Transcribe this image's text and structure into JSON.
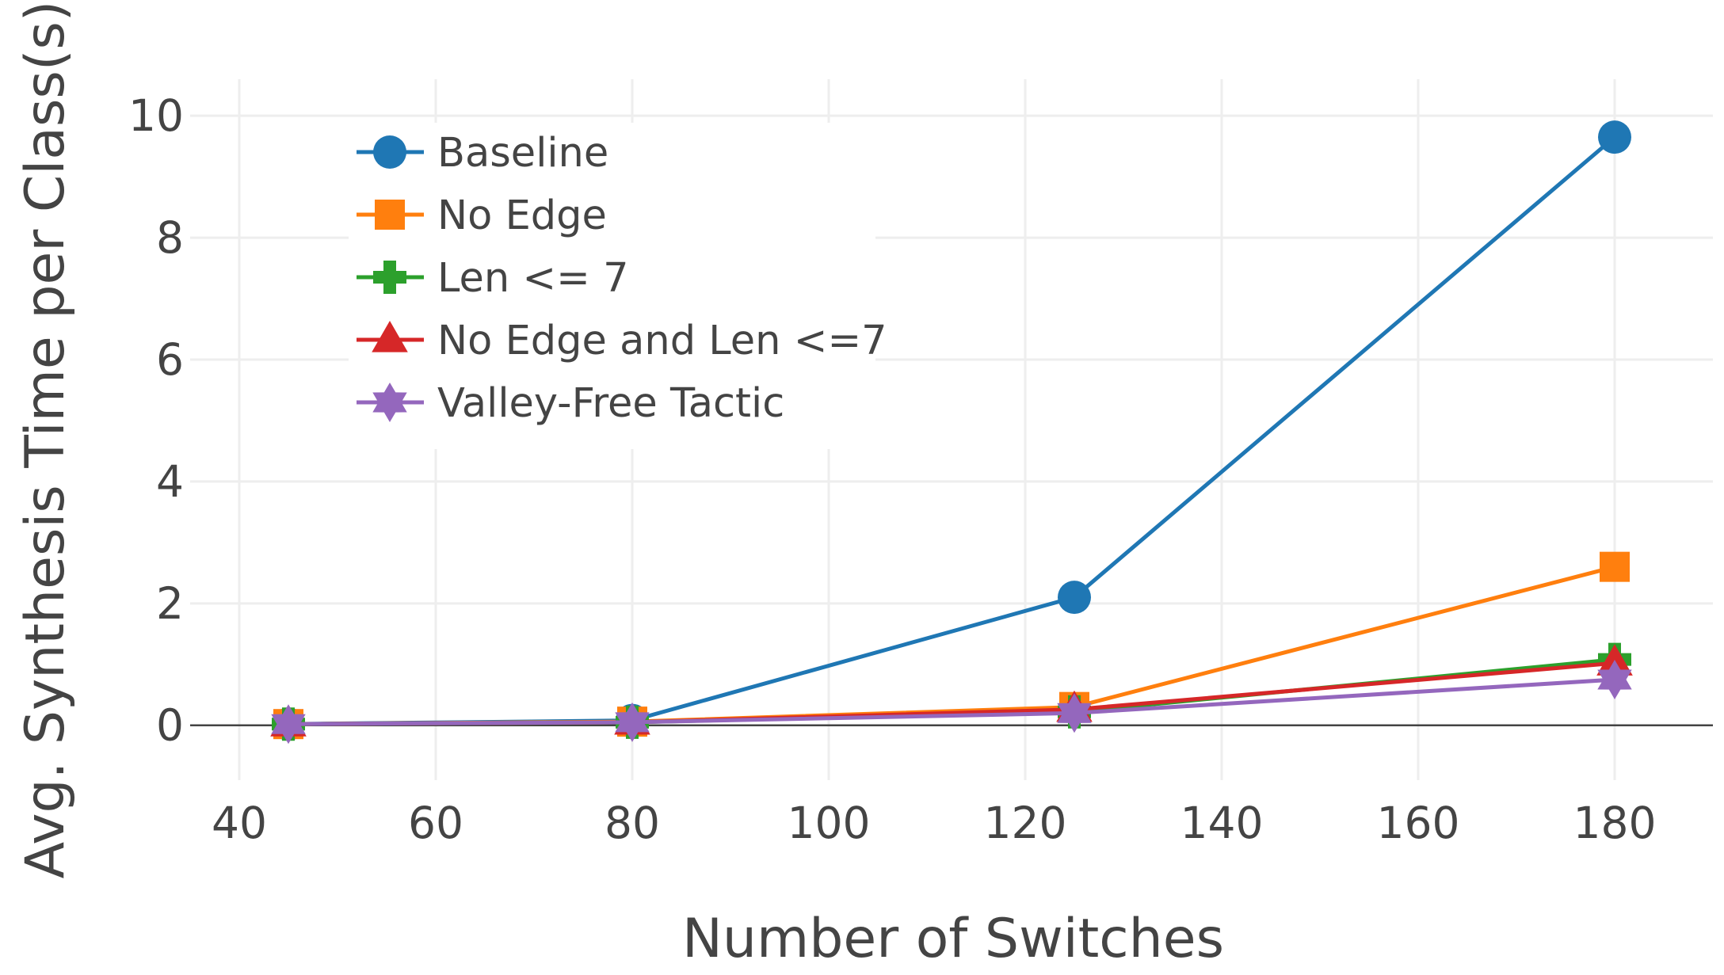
{
  "chart_data": {
    "type": "line",
    "title": "",
    "xlabel": "Number of Switches",
    "ylabel": "Avg. Synthesis Time per Class(s)",
    "xlim": [
      35,
      190
    ],
    "ylim": [
      -0.9,
      10.6
    ],
    "x_ticks": [
      40,
      60,
      80,
      100,
      120,
      140,
      160,
      180
    ],
    "y_ticks": [
      0,
      2,
      4,
      6,
      8,
      10
    ],
    "grid": true,
    "legend_position": "top-left",
    "x": [
      45,
      80,
      125,
      180
    ],
    "series": [
      {
        "name": "Baseline",
        "color": "#1f77b4",
        "marker": "circle",
        "values": [
          0.02,
          0.08,
          2.1,
          9.65
        ]
      },
      {
        "name": "No Edge",
        "color": "#ff7f0e",
        "marker": "square",
        "values": [
          0.02,
          0.06,
          0.3,
          2.6
        ]
      },
      {
        "name": "Len <= 7",
        "color": "#2ca02c",
        "marker": "cross",
        "values": [
          0.02,
          0.05,
          0.22,
          1.08
        ]
      },
      {
        "name": "No Edge and Len <=7",
        "color": "#d62728",
        "marker": "triangle-up",
        "values": [
          0.02,
          0.05,
          0.26,
          1.02
        ]
      },
      {
        "name": "Valley-Free Tactic",
        "color": "#9467bd",
        "marker": "star",
        "values": [
          0.02,
          0.05,
          0.2,
          0.75
        ]
      }
    ]
  }
}
